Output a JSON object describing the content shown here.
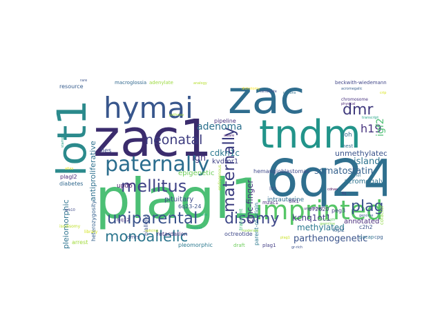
{
  "word_cloud": {
    "words": [
      {
        "text": "zac",
        "color": "#2f6d8e"
      },
      {
        "text": "zac1",
        "color": "#3b2c6d"
      },
      {
        "text": "plagl1",
        "color": "#4cbf75"
      },
      {
        "text": "6q24",
        "color": "#2f6f8e"
      },
      {
        "text": "tndm",
        "color": "#22948a"
      },
      {
        "text": "lot1",
        "color": "#2b8a8c"
      },
      {
        "text": "hymai",
        "color": "#38568c"
      },
      {
        "text": "imprinted",
        "color": "#56c667"
      },
      {
        "text": "paternally",
        "color": "#2b6d8e"
      },
      {
        "text": "uniparental",
        "color": "#3a538b"
      },
      {
        "text": "mellitus",
        "color": "#414487"
      },
      {
        "text": "disomy",
        "color": "#3f4989"
      },
      {
        "text": "monoallelic",
        "color": "#2c768e"
      },
      {
        "text": "maternally",
        "color": "#3a3b7f"
      },
      {
        "text": "dmr",
        "color": "#403a7d"
      },
      {
        "text": "plag",
        "color": "#3a528b"
      },
      {
        "text": "neonatal",
        "color": "#3b3a7e"
      },
      {
        "text": "h19",
        "color": "#46327e"
      },
      {
        "text": "igf2",
        "color": "#4dbf74"
      },
      {
        "text": "adenoma",
        "color": "#2d718e"
      },
      {
        "text": "somatostatin",
        "color": "#34618d"
      },
      {
        "text": "methylated",
        "color": "#2a788e"
      },
      {
        "text": "unmethylated",
        "color": "#3a538b"
      },
      {
        "text": "island",
        "color": "#2c738e"
      },
      {
        "text": "acromegaly",
        "color": "#2c728e"
      },
      {
        "text": "parthenogenetic",
        "color": "#3a538b"
      },
      {
        "text": "kcnq1ot1",
        "color": "#443983"
      },
      {
        "text": "cdkn1c",
        "color": "#2a788e"
      },
      {
        "text": "kvdmr1",
        "color": "#414487"
      },
      {
        "text": "zinc-finger",
        "color": "#46307e"
      },
      {
        "text": "antiproliferative",
        "color": "#2d708e"
      },
      {
        "text": "pleiomorphic",
        "color": "#2c728e"
      },
      {
        "text": "ign",
        "color": "#46337f"
      },
      {
        "text": "epigenetic",
        "color": "#6ece58"
      },
      {
        "text": "pituitary",
        "color": "#3e4a89"
      },
      {
        "text": "upd6",
        "color": "#48186a"
      },
      {
        "text": "annotated",
        "color": "#472a7a"
      },
      {
        "text": "hemangioblastomas",
        "color": "#3e4989"
      },
      {
        "text": "intrauterine",
        "color": "#2f6c8e"
      },
      {
        "text": "pipeline",
        "color": "#472f7d"
      },
      {
        "text": "macroglossia",
        "color": "#31688e"
      },
      {
        "text": "adenylate",
        "color": "#9bd93c"
      },
      {
        "text": "resource",
        "color": "#365c8d"
      },
      {
        "text": "lies",
        "color": "#3e4a89"
      },
      {
        "text": "loh",
        "color": "#2f6c8e"
      },
      {
        "text": "beckwith-wiedemann",
        "color": "#404688"
      },
      {
        "text": "diabetes",
        "color": "#31688e"
      },
      {
        "text": "heterozygosity",
        "color": "#34608d"
      },
      {
        "text": "plagl2",
        "color": "#482677"
      },
      {
        "text": "biallelic",
        "color": "#3b518b"
      },
      {
        "text": "retardation",
        "color": "#46307e"
      },
      {
        "text": "6q23-24",
        "color": "#3b528b"
      },
      {
        "text": "octreotide",
        "color": "#3f4889"
      },
      {
        "text": "pleomorphic",
        "color": "#2a788e"
      },
      {
        "text": "arrest",
        "color": "#a0da39"
      },
      {
        "text": "plag1",
        "color": "#433e85"
      },
      {
        "text": "parent-of-origin",
        "color": "#2a788e"
      },
      {
        "text": "kip2",
        "color": "#355f8d"
      },
      {
        "text": "peg3",
        "color": "#433e85"
      },
      {
        "text": "c2h2",
        "color": "#3b528b"
      },
      {
        "text": "u72620",
        "color": "#453882"
      },
      {
        "text": "dlk1",
        "color": "#46337f"
      },
      {
        "text": "mzac1",
        "color": "#472a7a"
      },
      {
        "text": "transient",
        "color": "#3bbb75"
      },
      {
        "text": "cpg",
        "color": "#355e8d"
      },
      {
        "text": "cofactor",
        "color": "#8fd744"
      },
      {
        "text": "pacap",
        "color": "#2c728e"
      },
      {
        "text": "dmrs",
        "color": "#3e4989"
      },
      {
        "text": "&q12",
        "color": "#46327e"
      },
      {
        "text": "lit1",
        "color": "#3e4c8a"
      },
      {
        "text": "nest",
        "color": "#2e6e8e"
      },
      {
        "text": "draft",
        "color": "#6ccd5a"
      },
      {
        "text": "isodisomy",
        "color": "#bddf26"
      },
      {
        "text": "library",
        "color": "#d2e21b"
      },
      {
        "text": "chromosome",
        "color": "#46307e"
      },
      {
        "text": "candidate",
        "color": "#3e4a89"
      },
      {
        "text": "atlas",
        "color": "#e5e419"
      },
      {
        "text": "endogenous",
        "color": "#a5db36"
      },
      {
        "text": "splicing",
        "color": "#c2df23"
      },
      {
        "text": "genome",
        "color": "#38598c"
      },
      {
        "text": "analogy",
        "color": "#b5de2b"
      },
      {
        "text": "dichotomy",
        "color": "#fde725"
      },
      {
        "text": "rare",
        "color": "#3b528b"
      },
      {
        "text": "full-length",
        "color": "#5ec962"
      },
      {
        "text": "germline",
        "color": "#7ad151"
      },
      {
        "text": "cdnas",
        "color": "#440154"
      },
      {
        "text": "6q",
        "color": "#433e85"
      },
      {
        "text": "acromegalic",
        "color": "#355e8d"
      },
      {
        "text": "physical",
        "color": "#482475"
      },
      {
        "text": "pathway",
        "color": "#a2da37"
      },
      {
        "text": "gene",
        "color": "#29af7f"
      },
      {
        "text": "transcript",
        "color": "#20a386"
      },
      {
        "text": "stamp",
        "color": "#1fa088"
      },
      {
        "text": "plag1",
        "color": "#c8e020"
      },
      {
        "text": "harbor",
        "color": "#22a785"
      },
      {
        "text": "gr-rich",
        "color": "#3b518b"
      },
      {
        "text": "unselected",
        "color": "#46307e"
      },
      {
        "text": "grb10",
        "color": "#3e4a89"
      },
      {
        "text": "aware",
        "color": "#481b6d"
      },
      {
        "text": "moderate",
        "color": "#93d741"
      },
      {
        "text": "lot",
        "color": "#2c728e"
      },
      {
        "text": "crip",
        "color": "#d8e219"
      },
      {
        "text": "regions",
        "color": "#2e6f8e"
      }
    ]
  }
}
